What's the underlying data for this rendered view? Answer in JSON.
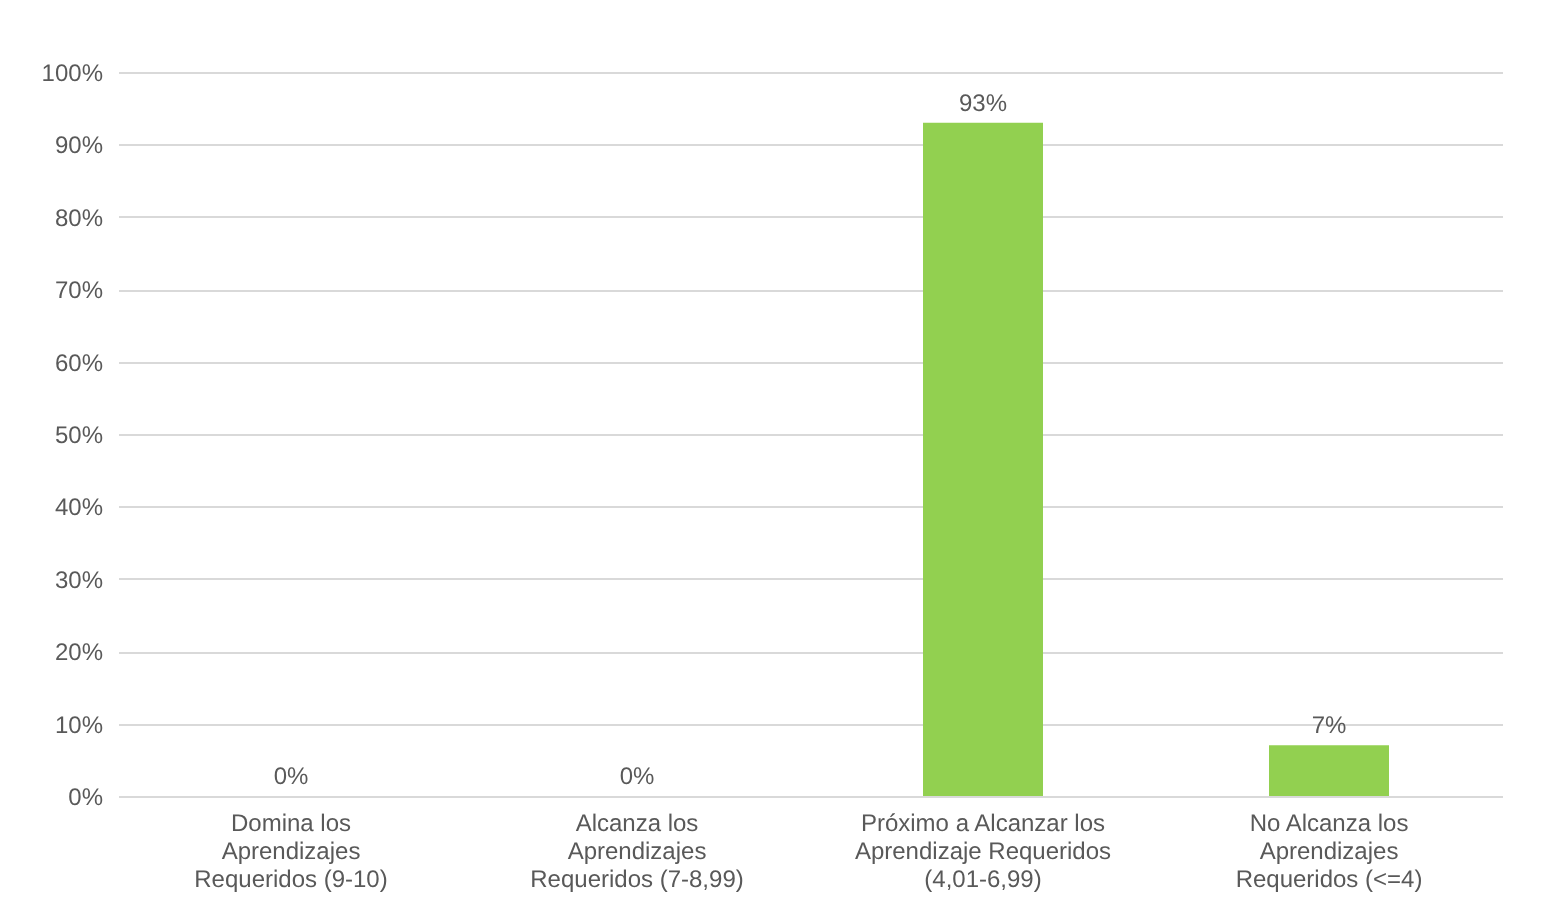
{
  "chart_data": {
    "type": "bar",
    "categories": [
      "Domina los Aprendizajes Requeridos (9-10)",
      "Alcanza los Aprendizajes Requeridos (7-8,99)",
      "Próximo a Alcanzar los Aprendizaje Requeridos (4,01-6,99)",
      "No Alcanza los Aprendizajes Requeridos (<=4)"
    ],
    "values": [
      0,
      0,
      93,
      7
    ],
    "value_labels": [
      "0%",
      "0%",
      "93%",
      "7%"
    ],
    "color": "#92d050",
    "ylim": [
      0,
      100
    ],
    "yticks": [
      {
        "value": 0,
        "label": "0%"
      },
      {
        "value": 10,
        "label": "10%"
      },
      {
        "value": 20,
        "label": "20%"
      },
      {
        "value": 30,
        "label": "30%"
      },
      {
        "value": 40,
        "label": "40%"
      },
      {
        "value": 50,
        "label": "50%"
      },
      {
        "value": 60,
        "label": "60%"
      },
      {
        "value": 70,
        "label": "70%"
      },
      {
        "value": 80,
        "label": "80%"
      },
      {
        "value": 90,
        "label": "90%"
      },
      {
        "value": 100,
        "label": "100%"
      }
    ],
    "grid": "y"
  }
}
